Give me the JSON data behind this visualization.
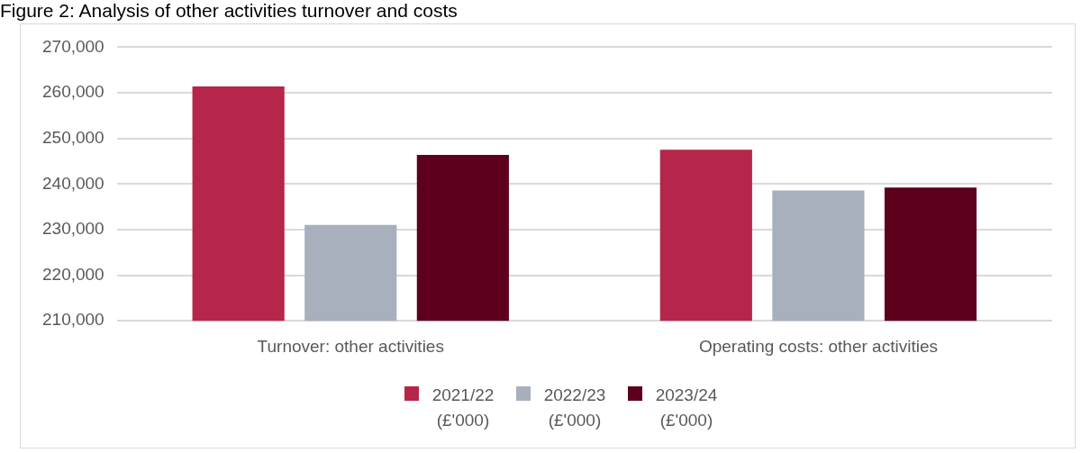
{
  "chart_data": {
    "type": "bar",
    "title": "Figure 2: Analysis of other activities turnover and costs",
    "categories": [
      "Turnover: other activities",
      "Operating costs: other activities"
    ],
    "series": [
      {
        "name": "2021/22 (£'000)",
        "color": "#b5264a",
        "values": [
          261400,
          247500
        ]
      },
      {
        "name": "2022/23 (£'000)",
        "color": "#a7b0bc",
        "values": [
          231000,
          238600
        ]
      },
      {
        "name": "2023/24 (£'000)",
        "color": "#5c001c",
        "values": [
          246400,
          239200
        ]
      }
    ],
    "ylim": [
      210000,
      270000
    ],
    "yticks": [
      {
        "value": 210000,
        "label": "210,000"
      },
      {
        "value": 220000,
        "label": "220,000"
      },
      {
        "value": 230000,
        "label": "230,000"
      },
      {
        "value": 240000,
        "label": "240,000"
      },
      {
        "value": 250000,
        "label": "250,000"
      },
      {
        "value": 260000,
        "label": "260,000"
      },
      {
        "value": 270000,
        "label": "270,000"
      }
    ],
    "grid": "y",
    "legend": "bottom"
  }
}
